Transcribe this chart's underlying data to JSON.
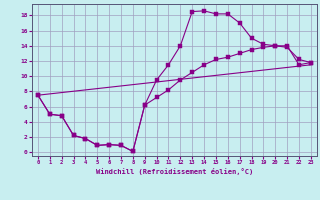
{
  "xlabel": "Windchill (Refroidissement éolien,°C)",
  "background_color": "#c8eef0",
  "grid_color": "#a0a0c0",
  "line_color": "#880088",
  "xlim": [
    -0.5,
    23.5
  ],
  "ylim": [
    -0.5,
    19.5
  ],
  "xticks": [
    0,
    1,
    2,
    3,
    4,
    5,
    6,
    7,
    8,
    9,
    10,
    11,
    12,
    13,
    14,
    15,
    16,
    17,
    18,
    19,
    20,
    21,
    22,
    23
  ],
  "yticks": [
    0,
    2,
    4,
    6,
    8,
    10,
    12,
    14,
    16,
    18
  ],
  "line1_x": [
    0,
    1,
    2,
    3,
    4,
    5,
    6,
    7,
    8,
    9,
    10,
    11,
    12,
    13,
    14,
    15,
    16,
    17,
    18,
    19,
    20,
    21,
    22,
    23
  ],
  "line1_y": [
    7.5,
    5.0,
    4.8,
    2.2,
    1.8,
    0.9,
    1.0,
    0.9,
    0.1,
    6.2,
    9.5,
    11.5,
    14.0,
    18.5,
    18.6,
    18.2,
    18.2,
    17.0,
    15.0,
    14.2,
    14.0,
    13.8,
    12.2,
    11.8
  ],
  "line2_x": [
    0,
    1,
    2,
    3,
    4,
    5,
    6,
    7,
    8,
    9,
    10,
    11,
    12,
    13,
    14,
    15,
    16,
    17,
    18,
    19,
    20,
    21,
    22,
    23
  ],
  "line2_y": [
    7.5,
    5.0,
    4.8,
    2.2,
    1.8,
    0.9,
    1.0,
    0.9,
    0.1,
    6.2,
    7.2,
    8.2,
    9.5,
    10.5,
    11.5,
    12.2,
    12.5,
    13.0,
    13.5,
    13.8,
    14.0,
    14.0,
    11.5,
    11.8
  ],
  "line3_x": [
    0,
    23
  ],
  "line3_y": [
    7.5,
    11.5
  ]
}
